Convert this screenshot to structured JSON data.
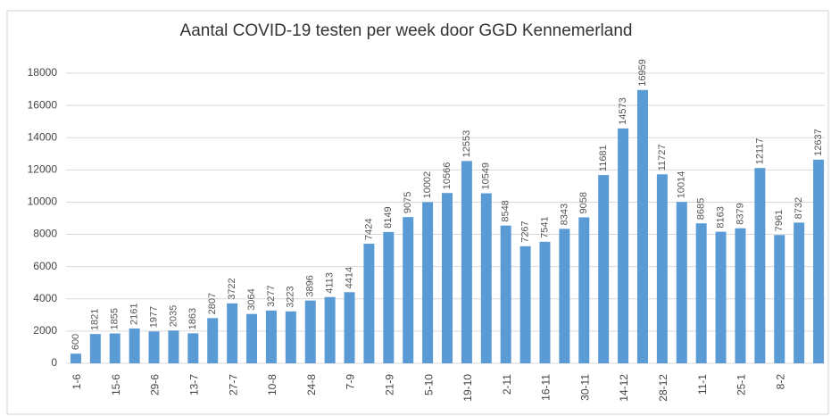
{
  "chart_data": {
    "type": "bar",
    "title": "Aantal COVID-19 testen per week door GGD Kennemerland",
    "categories": [
      "1-6",
      null,
      "15-6",
      null,
      "29-6",
      null,
      "13-7",
      null,
      "27-7",
      null,
      "10-8",
      null,
      "24-8",
      null,
      "7-9",
      null,
      "21-9",
      null,
      "5-10",
      null,
      "19-10",
      null,
      "2-11",
      null,
      "16-11",
      null,
      "30-11",
      null,
      "14-12",
      null,
      "28-12",
      null,
      "11-1",
      null,
      "25-1",
      null,
      "8-2",
      null,
      null
    ],
    "values": [
      600,
      1821,
      1855,
      2161,
      1977,
      2035,
      1863,
      2807,
      3722,
      3064,
      3277,
      3223,
      3896,
      4113,
      4414,
      7424,
      8149,
      9075,
      10002,
      10566,
      12553,
      10549,
      8548,
      7267,
      7541,
      8343,
      9058,
      11681,
      14573,
      16959,
      11727,
      10014,
      8685,
      8163,
      8379,
      12117,
      7961,
      8732,
      12637
    ],
    "color": "#5b9bd5",
    "ylim": [
      0,
      18000
    ],
    "yticks": [
      0,
      2000,
      4000,
      6000,
      8000,
      10000,
      12000,
      14000,
      16000,
      18000
    ],
    "grid": true
  }
}
